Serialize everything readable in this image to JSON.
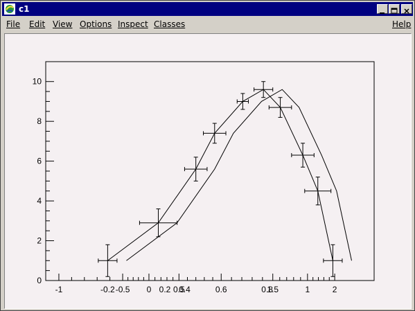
{
  "window": {
    "title": "c1",
    "close_glyph": "✕"
  },
  "menu": {
    "items": [
      "File",
      "Edit",
      "View",
      "Options",
      "Inspect",
      "Classes"
    ],
    "help": "Help"
  },
  "canvas": {
    "pad_color": "#f5f0f2"
  },
  "chart_data": {
    "type": "line",
    "title": "",
    "xlabel": "",
    "ylabel": "",
    "grid": false,
    "ylim": [
      0,
      11
    ],
    "y_ticks": [
      "0",
      "2",
      "4",
      "6",
      "8",
      "10"
    ],
    "x_tick_labels": [
      "-1",
      "-0.2",
      "-0.5",
      "0",
      "0.2",
      "0.5",
      "0.4",
      "0.6",
      "0.8",
      "1.5",
      "1",
      "2"
    ],
    "series": [
      {
        "kind": "errors",
        "x": [
          -0.22,
          0.05,
          0.25,
          0.35,
          0.5,
          0.61,
          0.7,
          0.82,
          0.9,
          0.98
        ],
        "y": [
          1.0,
          2.9,
          5.6,
          7.4,
          9.0,
          9.6,
          8.7,
          6.3,
          4.5,
          1.0
        ],
        "ex": [
          0.05,
          0.1,
          0.06,
          0.06,
          0.03,
          0.05,
          0.06,
          0.06,
          0.07,
          0.05
        ],
        "ey": [
          0.8,
          0.7,
          0.6,
          0.5,
          0.4,
          0.4,
          0.5,
          0.6,
          0.7,
          0.8
        ]
      },
      {
        "kind": "line",
        "x": [
          -0.22,
          0.05,
          0.25,
          0.35,
          0.5,
          0.61,
          0.7,
          0.82,
          0.9,
          0.98
        ],
        "y": [
          1.0,
          2.9,
          5.6,
          7.4,
          9.0,
          9.6,
          8.7,
          6.3,
          4.5,
          1.0
        ]
      },
      {
        "kind": "line",
        "x": [
          -0.12,
          0.15,
          0.35,
          0.45,
          0.6,
          0.71,
          0.8,
          0.92,
          1.0,
          1.08
        ],
        "y": [
          1.0,
          2.9,
          5.6,
          7.4,
          9.0,
          9.6,
          8.7,
          6.3,
          4.5,
          1.0
        ]
      }
    ]
  }
}
